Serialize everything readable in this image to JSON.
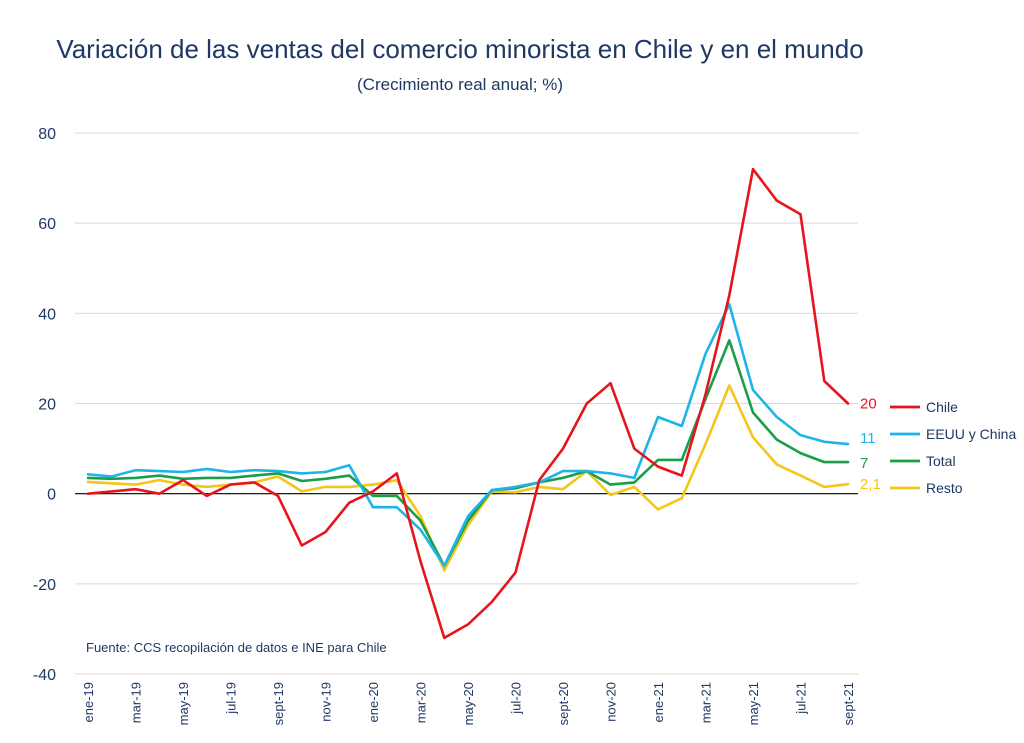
{
  "chart_data": {
    "type": "line",
    "title": "Variación de las ventas del comercio minorista en Chile y en el mundo",
    "subtitle": "(Crecimiento real anual; %)",
    "source": "Fuente:  CCS recopilación de datos e INE para Chile",
    "ylim": [
      -40,
      80
    ],
    "yticks": [
      "80",
      "60",
      "40",
      "20",
      "0",
      "-20",
      "-40"
    ],
    "ytick_values": [
      80,
      60,
      40,
      20,
      0,
      -20,
      -40
    ],
    "grid": true,
    "legend_position": "right",
    "x_labels": [
      "ene-19",
      "mar-19",
      "may-19",
      "jul-19",
      "sept-19",
      "nov-19",
      "ene-20",
      "mar-20",
      "may-20",
      "jul-20",
      "sept-20",
      "nov-20",
      "ene-21",
      "mar-21",
      "may-21",
      "jul-21",
      "sept-21"
    ],
    "x": [
      "ene-19",
      "feb-19",
      "mar-19",
      "abr-19",
      "may-19",
      "jun-19",
      "jul-19",
      "ago-19",
      "sept-19",
      "oct-19",
      "nov-19",
      "dic-19",
      "ene-20",
      "feb-20",
      "mar-20",
      "abr-20",
      "may-20",
      "jun-20",
      "jul-20",
      "ago-20",
      "sept-20",
      "oct-20",
      "nov-20",
      "dic-20",
      "ene-21",
      "feb-21",
      "mar-21",
      "abr-21",
      "may-21",
      "jun-21",
      "jul-21",
      "ago-21",
      "sept-21"
    ],
    "series": [
      {
        "name": "Chile",
        "color": "#e8141c",
        "end_label": "20",
        "values": [
          0,
          0.5,
          1,
          0,
          3,
          -0.5,
          2,
          2.5,
          -0.5,
          -11.5,
          -8.5,
          -2,
          0.5,
          4.5,
          -15,
          -32,
          -29,
          -24,
          -17.5,
          3,
          10,
          20,
          24.5,
          10,
          6,
          4,
          22,
          44,
          72,
          65,
          62,
          25,
          20
        ]
      },
      {
        "name": "EEUU y China",
        "color": "#1eb4e8",
        "end_label": "11",
        "values": [
          4.3,
          3.8,
          5.2,
          5,
          4.8,
          5.5,
          4.8,
          5.2,
          5,
          4.5,
          4.8,
          6.3,
          -3,
          -3,
          -8,
          -16,
          -5,
          0.8,
          1.5,
          2.5,
          5,
          5,
          4.5,
          3.5,
          17,
          15,
          31,
          42,
          23,
          17,
          13,
          11.5,
          11
        ]
      },
      {
        "name": "Total",
        "color": "#1a9e4a",
        "end_label": "7",
        "values": [
          3.5,
          3.3,
          3.5,
          4,
          3.3,
          3.5,
          3.5,
          4,
          4.5,
          2.8,
          3.3,
          4,
          -0.5,
          -0.5,
          -6,
          -16,
          -6,
          0.8,
          1.2,
          2.5,
          3.5,
          5,
          2,
          2.5,
          7.5,
          7.5,
          21,
          34,
          18,
          12,
          9,
          7,
          7
        ]
      },
      {
        "name": "Resto",
        "color": "#f5c518",
        "end_label": "2,1",
        "values": [
          2.6,
          2.3,
          2,
          3,
          2,
          1.5,
          2,
          2.5,
          3.8,
          0.5,
          1.5,
          1.5,
          2,
          3,
          -5,
          -17,
          -7,
          0.5,
          0.3,
          1.5,
          1,
          5,
          -0.3,
          1.5,
          -3.5,
          -1,
          11,
          24,
          12.5,
          6.5,
          4,
          1.5,
          2.1
        ]
      }
    ]
  }
}
